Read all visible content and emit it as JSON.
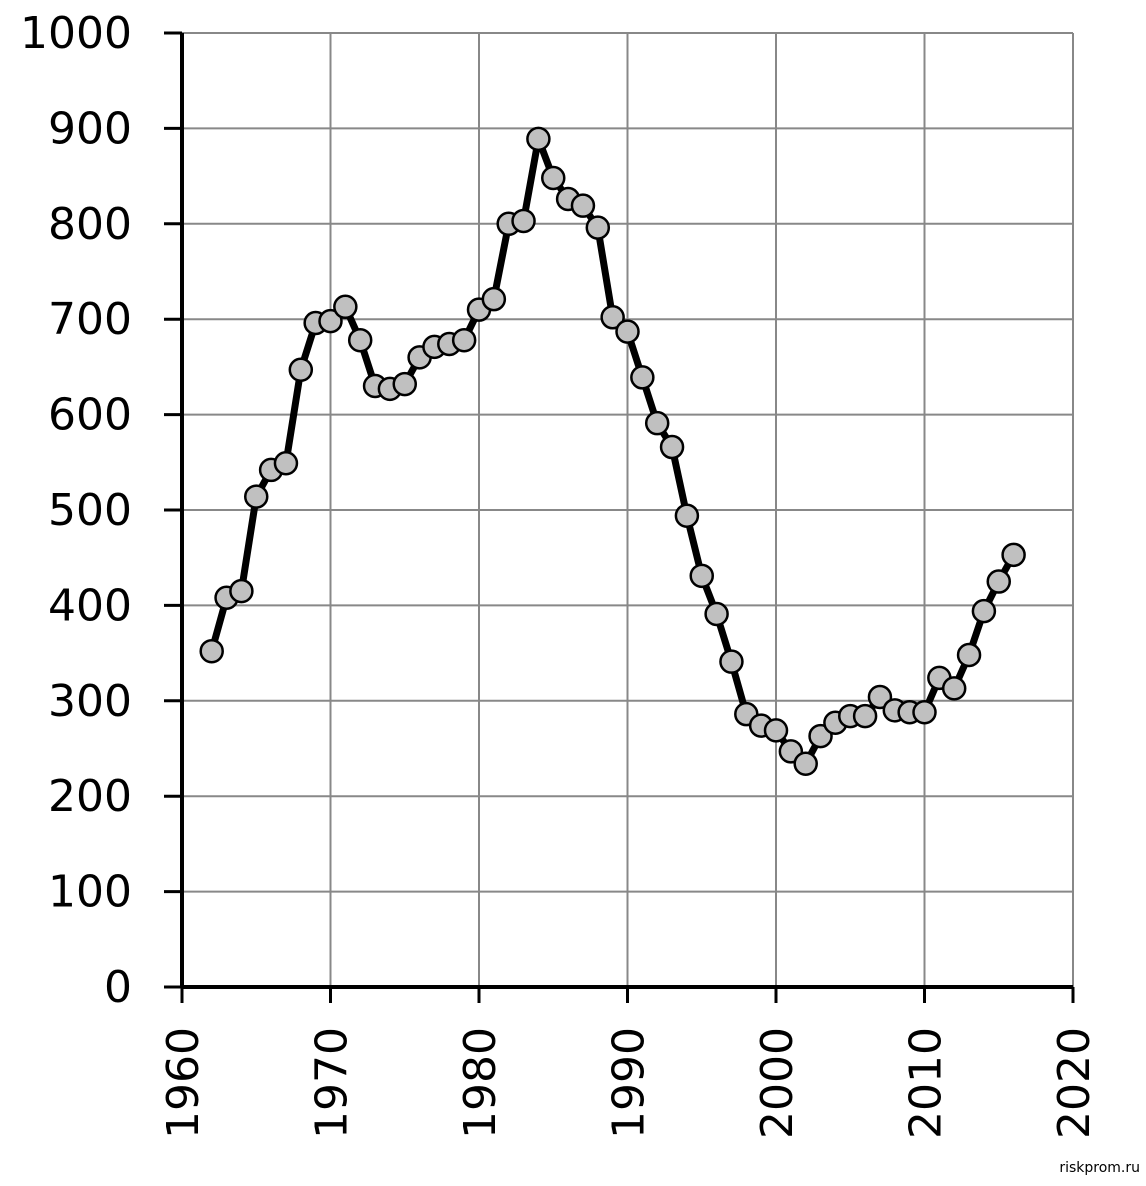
{
  "chart_data": {
    "type": "line",
    "x": [
      1962,
      1963,
      1964,
      1965,
      1966,
      1967,
      1968,
      1969,
      1970,
      1971,
      1972,
      1973,
      1974,
      1975,
      1976,
      1977,
      1978,
      1979,
      1980,
      1981,
      1982,
      1983,
      1984,
      1985,
      1986,
      1987,
      1988,
      1989,
      1990,
      1991,
      1992,
      1993,
      1994,
      1995,
      1996,
      1997,
      1998,
      1999,
      2000,
      2001,
      2002,
      2003,
      2004,
      2005,
      2006,
      2007,
      2008,
      2009,
      2010,
      2011,
      2012,
      2013,
      2014,
      2015,
      2016
    ],
    "series": [
      {
        "color": "#000000",
        "marker_color": "#c0c0c0",
        "values": [
          352,
          408,
          415,
          514,
          542,
          549,
          647,
          696,
          698,
          713,
          678,
          630,
          627,
          632,
          660,
          671,
          674,
          678,
          710,
          721,
          800,
          803,
          889,
          848,
          826,
          819,
          796,
          702,
          687,
          639,
          591,
          566,
          494,
          431,
          391,
          341,
          286,
          274,
          269,
          247,
          234,
          263,
          277,
          284,
          284,
          304,
          290,
          288,
          288,
          324,
          313,
          348,
          394,
          425,
          453
        ]
      }
    ],
    "xlim": [
      1960,
      2020
    ],
    "xticks": [
      1960,
      1970,
      1980,
      1990,
      2000,
      2010,
      2020
    ],
    "ylim": [
      0,
      1000
    ],
    "yticks": [
      0,
      100,
      200,
      300,
      400,
      500,
      600,
      700,
      800,
      900,
      1000
    ],
    "grid": true,
    "watermark": "riskprom.ru"
  }
}
